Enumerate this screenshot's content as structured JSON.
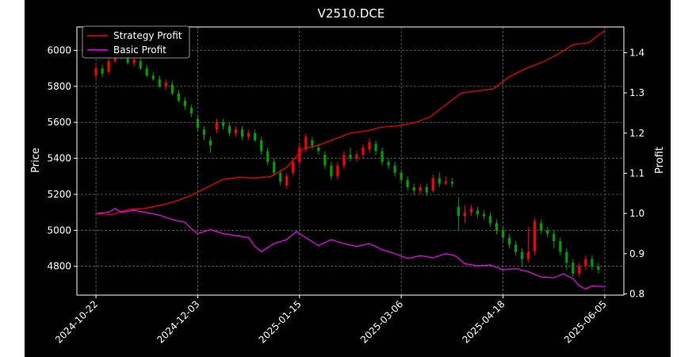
{
  "chart_data": {
    "type": "line",
    "title": "V2510.DCE",
    "xlabel": "",
    "ylabel_left": "Price",
    "ylabel_right": "Profit",
    "x_tick_labels": [
      "2024-10-22",
      "2024-12-03",
      "2025-01-15",
      "2025-03-06",
      "2025-04-18",
      "2025-06-05"
    ],
    "y_left_ticks": [
      4800,
      5000,
      5200,
      5400,
      5600,
      5800,
      6000
    ],
    "y_right_ticks": [
      0.8,
      0.9,
      1.0,
      1.1,
      1.2,
      1.3,
      1.4
    ],
    "y_left_range": [
      4640,
      6130
    ],
    "y_right_range": [
      0.797,
      1.464
    ],
    "grid": true,
    "legend": {
      "placement": "top-left",
      "entries": [
        "Strategy Profit",
        "Basic Profit"
      ]
    },
    "series": [
      {
        "name": "Strategy Profit",
        "axis": "right",
        "color": "#ff0000",
        "x": [
          0,
          5,
          10,
          15,
          20,
          25,
          30,
          35,
          40,
          45,
          50,
          55,
          60,
          65,
          70,
          75,
          80,
          85,
          90,
          95,
          100,
          105,
          110,
          115,
          120,
          125,
          130,
          135,
          140,
          145,
          150,
          155,
          160
        ],
        "values": [
          1.0,
          0.997,
          1.01,
          1.012,
          1.02,
          1.03,
          1.045,
          1.065,
          1.085,
          1.09,
          1.088,
          1.092,
          1.115,
          1.16,
          1.17,
          1.185,
          1.2,
          1.205,
          1.215,
          1.218,
          1.225,
          1.24,
          1.27,
          1.3,
          1.305,
          1.31,
          1.34,
          1.36,
          1.375,
          1.395,
          1.42,
          1.425,
          1.455
        ]
      },
      {
        "name": "Basic Profit",
        "axis": "right",
        "color": "#ff00ff",
        "x": [
          0,
          4,
          6,
          8,
          12,
          16,
          20,
          24,
          28,
          30,
          32,
          36,
          40,
          44,
          48,
          50,
          52,
          56,
          60,
          63,
          66,
          70,
          74,
          78,
          82,
          86,
          90,
          94,
          98,
          102,
          106,
          110,
          113,
          116,
          120,
          124,
          128,
          132,
          136,
          140,
          144,
          147,
          150,
          152,
          154,
          156,
          160
        ],
        "values": [
          1.0,
          1.003,
          1.012,
          1.003,
          1.008,
          1.002,
          0.996,
          0.985,
          0.978,
          0.962,
          0.95,
          0.96,
          0.95,
          0.945,
          0.94,
          0.918,
          0.905,
          0.925,
          0.935,
          0.955,
          0.94,
          0.92,
          0.935,
          0.925,
          0.918,
          0.925,
          0.91,
          0.9,
          0.888,
          0.895,
          0.89,
          0.9,
          0.895,
          0.875,
          0.87,
          0.872,
          0.86,
          0.863,
          0.855,
          0.842,
          0.84,
          0.85,
          0.838,
          0.82,
          0.812,
          0.82,
          0.818
        ]
      }
    ],
    "candles": [
      [
        0,
        5860,
        5900,
        5840,
        5920
      ],
      [
        2,
        5900,
        5870,
        5850,
        5920
      ],
      [
        4,
        5880,
        5940,
        5870,
        5960
      ],
      [
        6,
        5940,
        5990,
        5930,
        6000
      ],
      [
        8,
        5990,
        5960,
        5950,
        6010
      ],
      [
        10,
        5960,
        5930,
        5920,
        5980
      ],
      [
        12,
        5930,
        5950,
        5910,
        5970
      ],
      [
        14,
        5940,
        5900,
        5890,
        5960
      ],
      [
        16,
        5900,
        5860,
        5850,
        5920
      ],
      [
        18,
        5860,
        5840,
        5830,
        5880
      ],
      [
        20,
        5840,
        5800,
        5790,
        5860
      ],
      [
        22,
        5800,
        5820,
        5780,
        5840
      ],
      [
        24,
        5810,
        5760,
        5750,
        5830
      ],
      [
        26,
        5760,
        5720,
        5710,
        5780
      ],
      [
        28,
        5720,
        5690,
        5670,
        5740
      ],
      [
        30,
        5680,
        5650,
        5630,
        5700
      ],
      [
        32,
        5620,
        5570,
        5550,
        5640
      ],
      [
        34,
        5560,
        5530,
        5500,
        5580
      ],
      [
        36,
        5500,
        5470,
        5430,
        5520
      ],
      [
        38,
        5560,
        5600,
        5540,
        5620
      ],
      [
        40,
        5600,
        5580,
        5560,
        5620
      ],
      [
        42,
        5580,
        5540,
        5520,
        5600
      ],
      [
        44,
        5540,
        5560,
        5520,
        5580
      ],
      [
        46,
        5560,
        5520,
        5500,
        5580
      ],
      [
        48,
        5520,
        5540,
        5500,
        5560
      ],
      [
        50,
        5540,
        5500,
        5490,
        5560
      ],
      [
        52,
        5500,
        5440,
        5420,
        5520
      ],
      [
        54,
        5440,
        5380,
        5360,
        5460
      ],
      [
        56,
        5380,
        5320,
        5300,
        5400
      ],
      [
        58,
        5320,
        5270,
        5250,
        5340
      ],
      [
        60,
        5250,
        5300,
        5230,
        5320
      ],
      [
        62,
        5320,
        5380,
        5300,
        5400
      ],
      [
        64,
        5380,
        5460,
        5360,
        5480
      ],
      [
        66,
        5450,
        5520,
        5430,
        5540
      ],
      [
        68,
        5500,
        5470,
        5450,
        5520
      ],
      [
        70,
        5460,
        5440,
        5420,
        5480
      ],
      [
        72,
        5420,
        5360,
        5340,
        5440
      ],
      [
        74,
        5360,
        5300,
        5280,
        5380
      ],
      [
        76,
        5300,
        5360,
        5280,
        5380
      ],
      [
        78,
        5360,
        5420,
        5340,
        5440
      ],
      [
        80,
        5420,
        5400,
        5380,
        5460
      ],
      [
        82,
        5400,
        5420,
        5380,
        5440
      ],
      [
        84,
        5420,
        5460,
        5400,
        5480
      ],
      [
        86,
        5450,
        5490,
        5430,
        5510
      ],
      [
        88,
        5480,
        5440,
        5420,
        5500
      ],
      [
        90,
        5440,
        5380,
        5360,
        5460
      ],
      [
        92,
        5380,
        5360,
        5340,
        5400
      ],
      [
        94,
        5360,
        5320,
        5300,
        5380
      ],
      [
        96,
        5320,
        5280,
        5260,
        5340
      ],
      [
        98,
        5280,
        5240,
        5220,
        5300
      ],
      [
        100,
        5240,
        5220,
        5200,
        5260
      ],
      [
        102,
        5220,
        5240,
        5200,
        5260
      ],
      [
        104,
        5240,
        5210,
        5190,
        5260
      ],
      [
        106,
        5220,
        5290,
        5210,
        5310
      ],
      [
        108,
        5290,
        5260,
        5240,
        5320
      ],
      [
        110,
        5260,
        5270,
        5250,
        5300
      ],
      [
        112,
        5270,
        5260,
        5240,
        5290
      ],
      [
        114,
        5130,
        5080,
        5000,
        5180
      ],
      [
        116,
        5080,
        5100,
        5040,
        5140
      ],
      [
        118,
        5100,
        5120,
        5080,
        5140
      ],
      [
        120,
        5110,
        5090,
        5070,
        5130
      ],
      [
        122,
        5090,
        5080,
        5060,
        5110
      ],
      [
        124,
        5080,
        5040,
        5020,
        5100
      ],
      [
        126,
        5040,
        5000,
        4980,
        5060
      ],
      [
        128,
        5000,
        4960,
        4940,
        5020
      ],
      [
        130,
        4960,
        4920,
        4900,
        4980
      ],
      [
        132,
        4920,
        4880,
        4860,
        4940
      ],
      [
        134,
        4880,
        4840,
        4800,
        4900
      ],
      [
        136,
        4840,
        4880,
        4820,
        5020
      ],
      [
        138,
        4880,
        5050,
        4860,
        5070
      ],
      [
        140,
        5040,
        5000,
        4980,
        5060
      ],
      [
        142,
        5000,
        4980,
        4960,
        5020
      ],
      [
        144,
        4980,
        4940,
        4900,
        5000
      ],
      [
        146,
        4940,
        4880,
        4860,
        4960
      ],
      [
        148,
        4880,
        4820,
        4780,
        4900
      ],
      [
        150,
        4820,
        4760,
        4740,
        4840
      ],
      [
        152,
        4760,
        4800,
        4740,
        4820
      ],
      [
        154,
        4800,
        4840,
        4780,
        4860
      ],
      [
        156,
        4840,
        4800,
        4780,
        4860
      ],
      [
        158,
        4800,
        4780,
        4760,
        4820
      ]
    ]
  }
}
